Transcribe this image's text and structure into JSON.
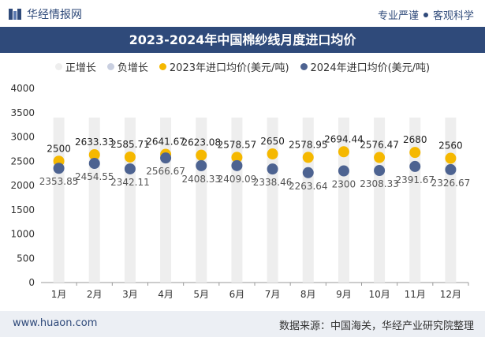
{
  "header": {
    "brand": "华经情报网",
    "slogan_left": "专业严谨",
    "slogan_right": "客观科学"
  },
  "title": "2023-2024年中国棉纱线月度进口均价",
  "legend": {
    "pos": "正增长",
    "neg": "负增长",
    "s2023": "2023年进口均价(美元/吨)",
    "s2024": "2024年进口均价(美元/吨)"
  },
  "footer": {
    "url": "www.huaon.com",
    "source": "数据来源：中国海关，华经产业研究院整理"
  },
  "colors": {
    "header_bg": "#2f4a7a",
    "series_2023": "#f5b800",
    "series_2024": "#4d6391",
    "bar_pos": "#eeeeee",
    "bar_neg": "#c9cfe0"
  },
  "chart_data": {
    "type": "scatter",
    "categories": [
      "1月",
      "2月",
      "3月",
      "4月",
      "5月",
      "6月",
      "7月",
      "8月",
      "9月",
      "10月",
      "11月",
      "12月"
    ],
    "series": [
      {
        "name": "2023年进口均价(美元/吨)",
        "values": [
          2500,
          2633.33,
          2585.71,
          2641.67,
          2623.08,
          2578.57,
          2650,
          2578.95,
          2694.44,
          2576.47,
          2680,
          2560
        ]
      },
      {
        "name": "2024年进口均价(美元/吨)",
        "values": [
          2353.85,
          2454.55,
          2342.11,
          2566.67,
          2408.33,
          2409.09,
          2338.46,
          2263.64,
          2300,
          2308.33,
          2391.67,
          2326.67
        ]
      }
    ],
    "labels_2023": [
      "2500",
      "2633.33",
      "2585.71",
      "2641.67",
      "2623.08",
      "2578.57",
      "2650",
      "2578.95",
      "2694.44",
      "2576.47",
      "2680",
      "2560"
    ],
    "labels_2024": [
      "2353.85",
      "2454.55",
      "2342.11",
      "2566.67",
      "2408.33",
      "2409.09",
      "2338.46",
      "2263.64",
      "2300",
      "2308.33",
      "2391.67",
      "2326.67"
    ],
    "yticks": [
      "0",
      "500",
      "1000",
      "1500",
      "2000",
      "2500",
      "3000",
      "3500",
      "4000"
    ],
    "ylim": [
      0,
      4000
    ],
    "grid": false,
    "legend_position": "top"
  }
}
